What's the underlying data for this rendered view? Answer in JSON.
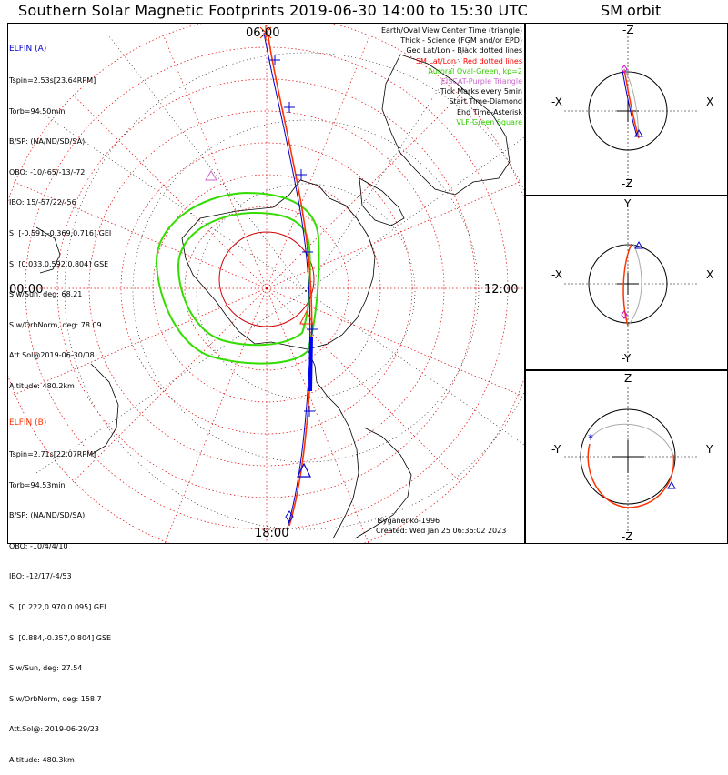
{
  "title": "Southern Solar Magnetic Footprints 2019-06-30 14:00 to 15:30 UTC",
  "orbit_title": "SM orbit",
  "map": {
    "mlt_labels": [
      "06:00",
      "12:00",
      "18:00",
      "00:00"
    ],
    "legend": [
      {
        "text": "Earth/Oval View Center Time (triangle)",
        "color": "#000000"
      },
      {
        "text": "Thick - Science (FGM and/or EPD)",
        "color": "#000000"
      },
      {
        "text": "Geo Lat/Lon - Black dotted lines",
        "color": "#000000"
      },
      {
        "text": "SM Lat/Lon - Red dotted lines",
        "color": "#ff0000"
      },
      {
        "text": "Auroral Oval-Green, kp=2",
        "color": "#33cc00"
      },
      {
        "text": "EISCAT-Purple Triangle",
        "color": "#cc66cc"
      },
      {
        "text": "Tick Marks every 5min",
        "color": "#000000"
      },
      {
        "text": "Start Time-Diamond",
        "color": "#000000"
      },
      {
        "text": "End Time-Asterisk",
        "color": "#000000"
      },
      {
        "text": "VLF-Green Square",
        "color": "#33cc00"
      }
    ],
    "credits": [
      "Tsyganenko-1996",
      "Created: Wed Jan 25 06:36:02 2023"
    ]
  },
  "probe_a": {
    "name": "ELFIN (A)",
    "color": "#0000cc",
    "lines": [
      "Tspin=2.53s[23.64RPM]",
      "Torb=94.50min",
      "B/SP: (NA/ND/SD/SA)",
      "OBO: -10/-65/-13/-72",
      "IBO: 15/-57/22/-56",
      "S: [-0.591,-0.369,0.716] GEI",
      "S: [0.033,0.592,0.804] GSE",
      "S w/Sun, deg: 68.21",
      "S w/OrbNorm, deg: 78.09",
      "Att.Sol@2019-06-30/08",
      "Altitude: 480.2km"
    ]
  },
  "probe_b": {
    "name": "ELFIN (B)",
    "color": "#ff3300",
    "lines": [
      "Tspin=2.71s[22.07RPM]",
      "Torb=94.53min",
      "B/SP: (NA/ND/SD/SA)",
      "OBO: -10/4/4/10",
      "IBO: -12/17/-4/53",
      "S: [0.222,0.970,0.095] GEI",
      "S: [0.884,-0.357,0.804] GSE",
      "S w/Sun, deg: 27.54",
      "S w/OrbNorm, deg: 158.7",
      "Att.Sol@: 2019-06-29/23",
      "Altitude: 480.3km"
    ]
  },
  "orbit_panels": [
    {
      "top": "-Z",
      "bottom": "-Z",
      "left": "-X",
      "right": "X"
    },
    {
      "top": "Y",
      "bottom": "-Y",
      "left": "-X",
      "right": "X"
    },
    {
      "top": "Z",
      "bottom": "-Z",
      "left": "-Y",
      "right": "Y"
    }
  ]
}
